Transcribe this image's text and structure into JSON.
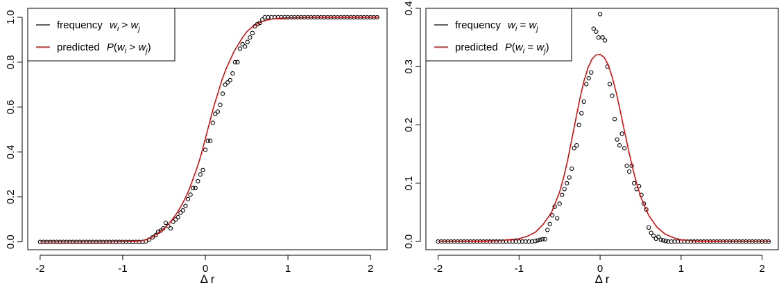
{
  "chart_data": [
    {
      "type": "scatter",
      "title": "",
      "xlabel": "Δ r",
      "ylabel": "",
      "xlim": [
        -2.15,
        2.2
      ],
      "ylim": [
        -0.035,
        1.04
      ],
      "xticks": [
        "-2",
        "-1",
        "0",
        "1",
        "2"
      ],
      "yticks": [
        "0.0",
        "0.2",
        "0.4",
        "0.6",
        "0.8",
        "1.0"
      ],
      "xtick_values": [
        -2,
        -1,
        0,
        1,
        2
      ],
      "ytick_values": [
        0,
        0.2,
        0.4,
        0.6,
        0.8,
        1.0
      ],
      "grid": false,
      "legend_position": "top-left",
      "legend": {
        "frequency_prefix": "frequency",
        "frequency_expr": "w_i > w_j",
        "predicted_prefix": "predicted",
        "predicted_expr": "P(w_i > w_j)"
      },
      "series": [
        {
          "name": "frequency",
          "style": "points",
          "color": "#000000",
          "x": [
            -2.0,
            -1.96,
            -1.92,
            -1.88,
            -1.84,
            -1.8,
            -1.76,
            -1.72,
            -1.68,
            -1.64,
            -1.6,
            -1.56,
            -1.52,
            -1.48,
            -1.44,
            -1.4,
            -1.36,
            -1.32,
            -1.28,
            -1.24,
            -1.2,
            -1.16,
            -1.12,
            -1.08,
            -1.04,
            -1.0,
            -0.96,
            -0.92,
            -0.88,
            -0.84,
            -0.8,
            -0.76,
            -0.72,
            -0.68,
            -0.64,
            -0.6,
            -0.57,
            -0.54,
            -0.51,
            -0.48,
            -0.45,
            -0.42,
            -0.39,
            -0.36,
            -0.33,
            -0.3,
            -0.27,
            -0.24,
            -0.21,
            -0.18,
            -0.15,
            -0.12,
            -0.09,
            -0.06,
            -0.03,
            0.0,
            0.03,
            0.06,
            0.09,
            0.12,
            0.15,
            0.18,
            0.21,
            0.24,
            0.27,
            0.3,
            0.33,
            0.36,
            0.39,
            0.42,
            0.45,
            0.48,
            0.51,
            0.54,
            0.57,
            0.6,
            0.63,
            0.66,
            0.69,
            0.72,
            0.76,
            0.8,
            0.84,
            0.88,
            0.92,
            0.96,
            1.0,
            1.04,
            1.08,
            1.12,
            1.16,
            1.2,
            1.24,
            1.28,
            1.32,
            1.36,
            1.4,
            1.44,
            1.48,
            1.52,
            1.56,
            1.6,
            1.64,
            1.68,
            1.72,
            1.76,
            1.8,
            1.84,
            1.88,
            1.92,
            1.96,
            2.0,
            2.04,
            2.08
          ],
          "y": [
            0,
            0,
            0,
            0,
            0,
            0,
            0,
            0,
            0,
            0,
            0,
            0,
            0,
            0,
            0,
            0,
            0,
            0,
            0,
            0,
            0,
            0,
            0,
            0,
            0,
            0,
            0,
            0,
            0,
            0,
            0,
            0,
            0.002,
            0.01,
            0.02,
            0.03,
            0.045,
            0.05,
            0.06,
            0.085,
            0.07,
            0.06,
            0.09,
            0.1,
            0.11,
            0.13,
            0.14,
            0.16,
            0.19,
            0.21,
            0.24,
            0.24,
            0.27,
            0.3,
            0.32,
            0.41,
            0.45,
            0.45,
            0.53,
            0.57,
            0.58,
            0.61,
            0.66,
            0.7,
            0.71,
            0.72,
            0.75,
            0.8,
            0.8,
            0.86,
            0.88,
            0.87,
            0.89,
            0.91,
            0.93,
            0.96,
            0.97,
            0.975,
            0.99,
            1.0,
            1.0,
            1.0,
            1.0,
            1.0,
            1.0,
            1.0,
            1.0,
            1.0,
            1.0,
            1.0,
            1.0,
            1.0,
            1.0,
            1.0,
            1.0,
            1.0,
            1.0,
            1.0,
            1.0,
            1.0,
            1.0,
            1.0,
            1.0,
            1.0,
            1.0,
            1.0,
            1.0,
            1.0,
            1.0,
            1.0,
            1.0,
            1.0,
            1.0,
            1.0
          ]
        },
        {
          "name": "predicted",
          "style": "line",
          "color": "#dd0000",
          "x": [
            -2.0,
            -1.8,
            -1.6,
            -1.4,
            -1.2,
            -1.0,
            -0.9,
            -0.8,
            -0.75,
            -0.7,
            -0.65,
            -0.6,
            -0.55,
            -0.5,
            -0.45,
            -0.4,
            -0.35,
            -0.3,
            -0.25,
            -0.2,
            -0.15,
            -0.1,
            -0.05,
            0.0,
            0.05,
            0.1,
            0.15,
            0.2,
            0.25,
            0.3,
            0.35,
            0.4,
            0.45,
            0.5,
            0.55,
            0.6,
            0.65,
            0.7,
            0.75,
            0.8,
            0.9,
            1.0,
            1.2,
            1.4,
            1.6,
            1.8,
            2.0,
            2.1
          ],
          "y": [
            0,
            0,
            0,
            0,
            0,
            0.001,
            0.002,
            0.004,
            0.007,
            0.012,
            0.02,
            0.032,
            0.045,
            0.06,
            0.078,
            0.1,
            0.125,
            0.155,
            0.19,
            0.23,
            0.28,
            0.33,
            0.39,
            0.46,
            0.53,
            0.6,
            0.66,
            0.72,
            0.77,
            0.81,
            0.85,
            0.88,
            0.91,
            0.935,
            0.952,
            0.965,
            0.975,
            0.983,
            0.988,
            0.992,
            0.996,
            0.998,
            0.999,
            1.0,
            1.0,
            1.0,
            1.0,
            1.0
          ]
        }
      ]
    },
    {
      "type": "scatter",
      "title": "",
      "xlabel": "Δ r",
      "ylabel": "",
      "xlim": [
        -2.15,
        2.2
      ],
      "ylim": [
        -0.014,
        0.4
      ],
      "xticks": [
        "-2",
        "-1",
        "0",
        "1",
        "2"
      ],
      "yticks": [
        "0.0",
        "0.1",
        "0.2",
        "0.3",
        "0.4"
      ],
      "xtick_values": [
        -2,
        -1,
        0,
        1,
        2
      ],
      "ytick_values": [
        0,
        0.1,
        0.2,
        0.3,
        0.4
      ],
      "grid": false,
      "legend_position": "top-left",
      "legend": {
        "frequency_prefix": "frequency",
        "frequency_expr": "w_i = w_j",
        "predicted_prefix": "predicted",
        "predicted_expr": "P(w_i = w_j)"
      },
      "series": [
        {
          "name": "frequency",
          "style": "points",
          "color": "#000000",
          "x": [
            -2.0,
            -1.96,
            -1.92,
            -1.88,
            -1.84,
            -1.8,
            -1.76,
            -1.72,
            -1.68,
            -1.64,
            -1.6,
            -1.56,
            -1.52,
            -1.48,
            -1.44,
            -1.4,
            -1.36,
            -1.32,
            -1.28,
            -1.24,
            -1.2,
            -1.16,
            -1.12,
            -1.08,
            -1.04,
            -1.0,
            -0.96,
            -0.92,
            -0.88,
            -0.84,
            -0.8,
            -0.77,
            -0.74,
            -0.71,
            -0.68,
            -0.65,
            -0.62,
            -0.59,
            -0.56,
            -0.53,
            -0.5,
            -0.47,
            -0.44,
            -0.41,
            -0.38,
            -0.35,
            -0.32,
            -0.29,
            -0.26,
            -0.23,
            -0.2,
            -0.17,
            -0.14,
            -0.11,
            -0.08,
            -0.05,
            -0.02,
            0.0,
            0.03,
            0.06,
            0.09,
            0.12,
            0.15,
            0.18,
            0.21,
            0.24,
            0.27,
            0.3,
            0.33,
            0.36,
            0.39,
            0.42,
            0.45,
            0.48,
            0.51,
            0.54,
            0.57,
            0.6,
            0.63,
            0.66,
            0.69,
            0.72,
            0.75,
            0.78,
            0.81,
            0.84,
            0.88,
            0.92,
            0.96,
            1.0,
            1.04,
            1.08,
            1.12,
            1.16,
            1.2,
            1.24,
            1.28,
            1.32,
            1.36,
            1.4,
            1.44,
            1.48,
            1.52,
            1.56,
            1.6,
            1.64,
            1.68,
            1.72,
            1.76,
            1.8,
            1.84,
            1.88,
            1.92,
            1.96,
            2.0,
            2.04,
            2.08
          ],
          "y": [
            0,
            0,
            0,
            0,
            0,
            0,
            0,
            0,
            0,
            0,
            0,
            0,
            0,
            0,
            0,
            0,
            0,
            0,
            0,
            0,
            0,
            0,
            0,
            0,
            0,
            0,
            0,
            0,
            0,
            0,
            0.001,
            0.002,
            0.003,
            0.004,
            0.004,
            0.02,
            0.03,
            0.045,
            0.06,
            0.04,
            0.065,
            0.08,
            0.09,
            0.1,
            0.11,
            0.125,
            0.16,
            0.165,
            0.2,
            0.22,
            0.24,
            0.27,
            0.28,
            0.29,
            0.365,
            0.36,
            0.35,
            0.39,
            0.35,
            0.345,
            0.3,
            0.27,
            0.25,
            0.21,
            0.175,
            0.165,
            0.185,
            0.16,
            0.13,
            0.12,
            0.13,
            0.1,
            0.09,
            0.095,
            0.08,
            0.065,
            0.055,
            0.024,
            0.015,
            0.01,
            0.005,
            0.008,
            0.003,
            0.002,
            0.001,
            0,
            0,
            0,
            0,
            0,
            0,
            0,
            0,
            0,
            0,
            0,
            0,
            0,
            0,
            0,
            0,
            0,
            0,
            0,
            0,
            0,
            0,
            0,
            0,
            0,
            0,
            0,
            0,
            0,
            0,
            0,
            0
          ]
        },
        {
          "name": "predicted",
          "style": "line",
          "color": "#dd0000",
          "x": [
            -2.0,
            -1.8,
            -1.6,
            -1.4,
            -1.2,
            -1.0,
            -0.9,
            -0.8,
            -0.7,
            -0.6,
            -0.5,
            -0.45,
            -0.4,
            -0.35,
            -0.3,
            -0.25,
            -0.2,
            -0.15,
            -0.1,
            -0.05,
            0.0,
            0.05,
            0.1,
            0.15,
            0.2,
            0.25,
            0.3,
            0.35,
            0.4,
            0.45,
            0.5,
            0.6,
            0.7,
            0.8,
            0.9,
            1.0,
            1.2,
            1.4,
            1.6,
            1.8,
            2.0,
            2.1
          ],
          "y": [
            0,
            0,
            0.0002,
            0.0008,
            0.002,
            0.005,
            0.009,
            0.016,
            0.03,
            0.05,
            0.085,
            0.11,
            0.14,
            0.175,
            0.21,
            0.245,
            0.275,
            0.298,
            0.313,
            0.32,
            0.321,
            0.316,
            0.303,
            0.282,
            0.255,
            0.223,
            0.19,
            0.157,
            0.127,
            0.1,
            0.077,
            0.045,
            0.025,
            0.013,
            0.007,
            0.003,
            0.001,
            0.0003,
            0,
            0,
            0,
            0
          ]
        }
      ]
    }
  ]
}
